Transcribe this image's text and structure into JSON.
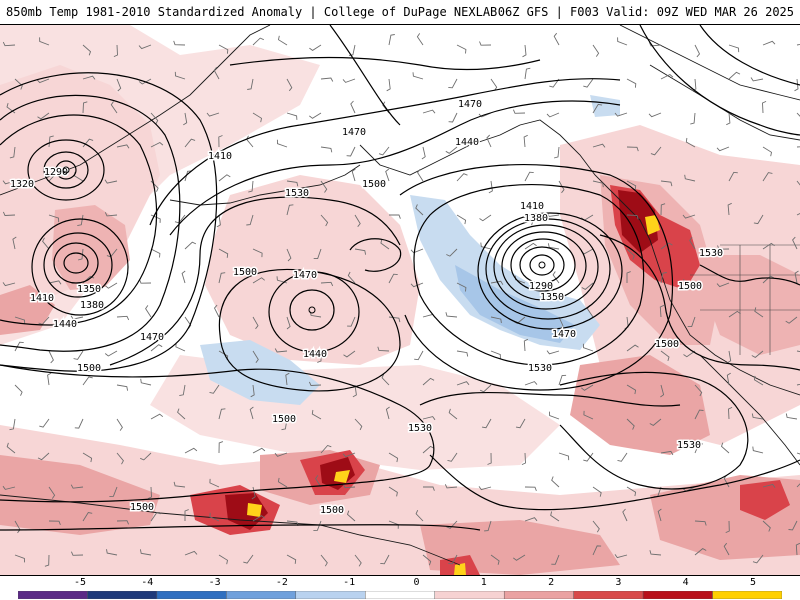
{
  "header": {
    "title_left": "850mb Temp 1981-2010 Standardized Anomaly | College of DuPage NEXLAB",
    "title_right": "06Z GFS | F003 Valid: 09Z WED MAR 26 2025"
  },
  "colorbar": {
    "ticks": [
      "-5",
      "-4",
      "-3",
      "-2",
      "-1",
      "0",
      "1",
      "2",
      "3",
      "4",
      "5"
    ],
    "colors": [
      "#5b2a86",
      "#1f3a7a",
      "#2f6fc0",
      "#6fa0dc",
      "#b9d2ef",
      "#ffffff",
      "#f6d2d2",
      "#eaa2a2",
      "#d84a4a",
      "#b8101a",
      "#ffd000"
    ]
  },
  "contours": {
    "labels": [
      "1470",
      "1470",
      "1440",
      "1410",
      "1530",
      "1500",
      "1290",
      "1320",
      "1350",
      "1380",
      "1410",
      "1440",
      "1470",
      "1500",
      "1470",
      "1440",
      "1500",
      "1410",
      "1380",
      "1290",
      "1350",
      "1470",
      "1530",
      "1500",
      "1500",
      "1530",
      "1500",
      "1530",
      "1530",
      "1500",
      "1500"
    ]
  },
  "map": {
    "anomaly_colors": {
      "warm_light": "#f7d6d6",
      "warm_mid": "#eaa5a5",
      "warm_strong": "#d9434a",
      "warm_extreme": "#9e0c16",
      "warm_max": "#ffd21a",
      "cool_light": "#c8dcf0",
      "cool_mid": "#a7c6e8"
    },
    "height_contour_color": "#000000",
    "coastline_color": "#1a1a1a",
    "wind_barb_color": "#6e6e6e"
  }
}
